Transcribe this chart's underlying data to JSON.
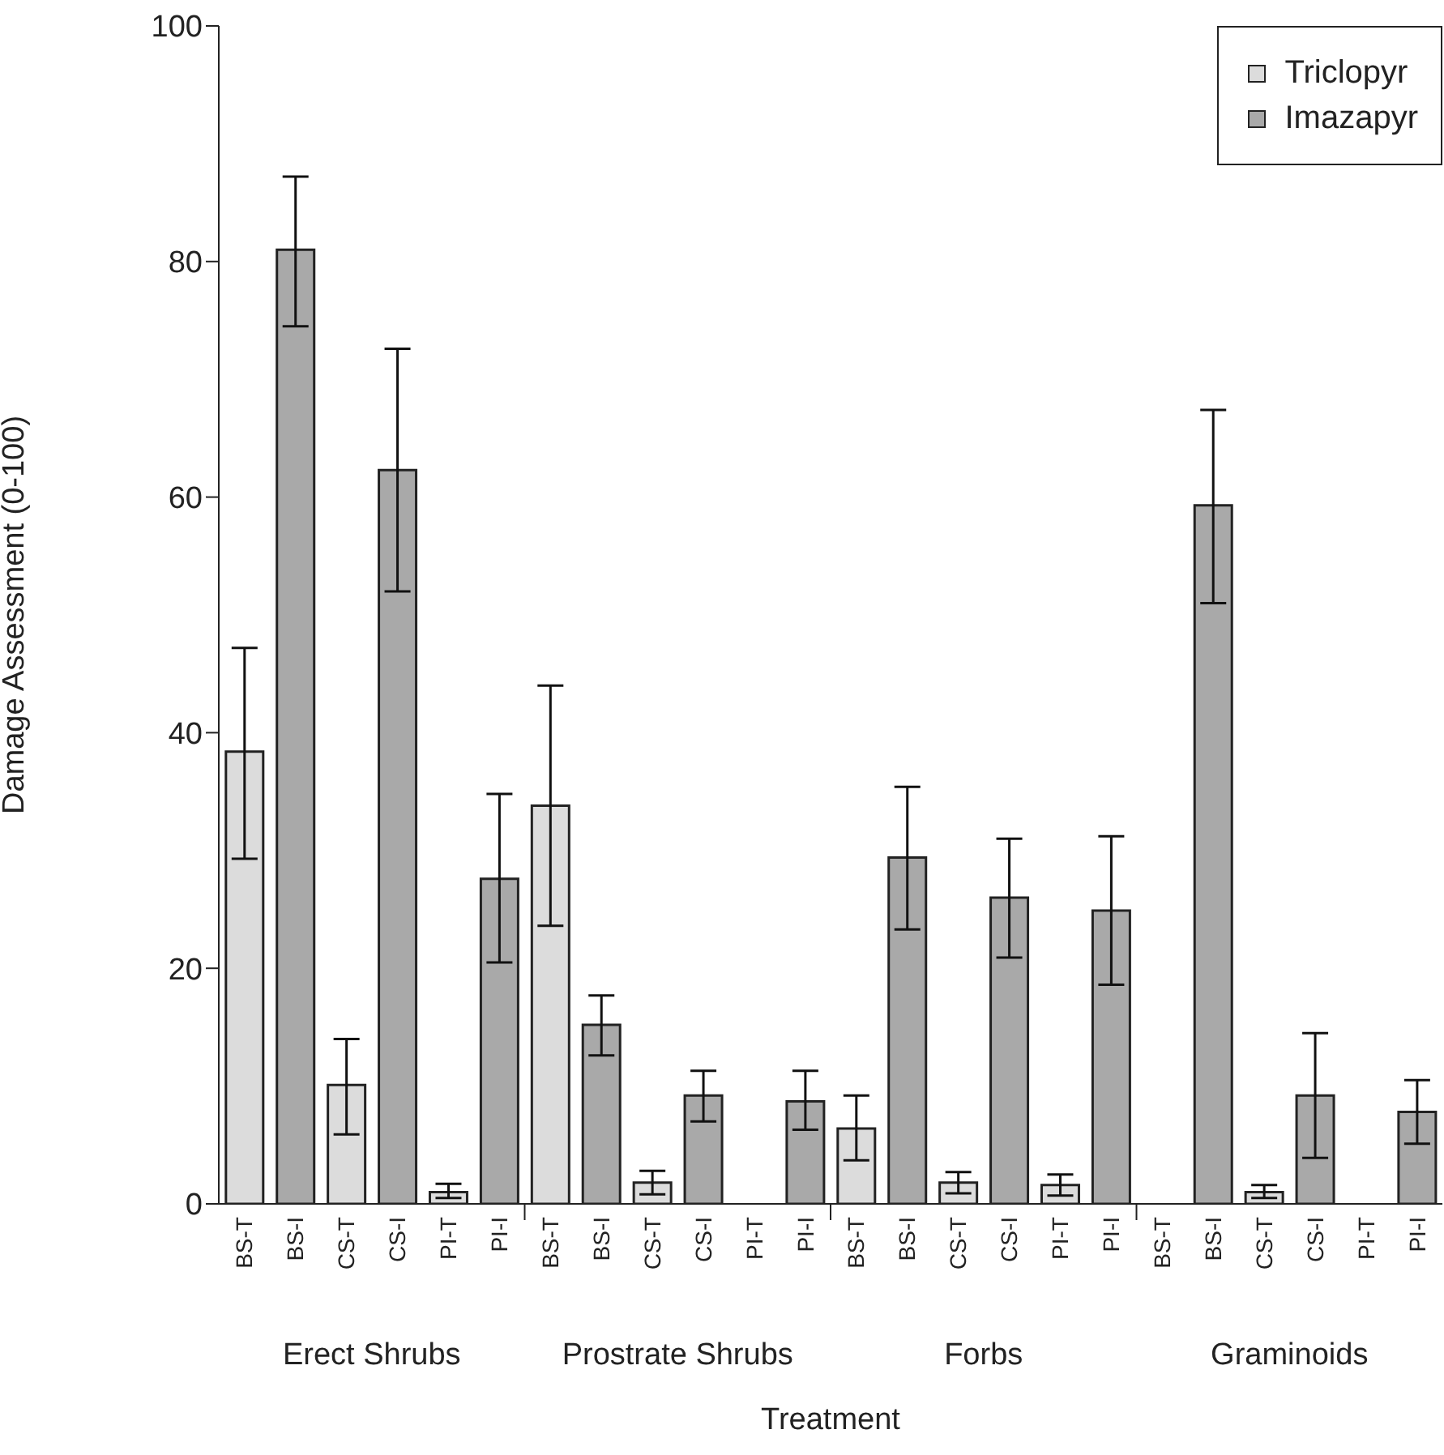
{
  "chart_data": {
    "type": "bar",
    "xlabel": "Treatment",
    "ylabel": "Damage Assessment (0-100)",
    "categories": [
      "BS-T",
      "BS-I",
      "CS-T",
      "CS-I",
      "PI-T",
      "PI-I",
      "BS-T",
      "BS-I",
      "CS-T",
      "CS-I",
      "PI-T",
      "PI-I",
      "BS-T",
      "BS-I",
      "CS-T",
      "CS-I",
      "PI-T",
      "PI-I",
      "BS-T",
      "BS-I",
      "CS-T",
      "CS-I",
      "PI-T",
      "PI-I"
    ],
    "series": [
      {
        "name": "Triclopyr",
        "color": "#dcdcdc",
        "values": [
          38.4,
          null,
          10.1,
          null,
          1,
          null,
          33.8,
          null,
          1.8,
          null,
          null,
          null,
          6.4,
          null,
          1.8,
          null,
          1.6,
          null,
          null,
          null,
          1,
          null,
          null,
          null
        ],
        "errors": [
          [
            29.3,
            47.2
          ],
          null,
          [
            5.9,
            14
          ],
          null,
          [
            0.5,
            1.7
          ],
          null,
          [
            23.6,
            44
          ],
          null,
          [
            0.8,
            2.8
          ],
          null,
          null,
          null,
          [
            3.7,
            9.2
          ],
          null,
          [
            0.9,
            2.7
          ],
          null,
          [
            0.7,
            2.5
          ],
          null,
          null,
          null,
          [
            0.5,
            1.6
          ],
          null,
          null,
          null
        ]
      },
      {
        "name": "Imazapyr",
        "color": "#a9a9a9",
        "values": [
          null,
          81,
          null,
          62.3,
          null,
          27.6,
          null,
          15.2,
          null,
          9.2,
          null,
          8.7,
          null,
          29.4,
          null,
          26,
          null,
          24.9,
          null,
          59.3,
          null,
          9.2,
          null,
          7.8
        ],
        "errors": [
          null,
          [
            74.5,
            87.2
          ],
          null,
          [
            52,
            72.6
          ],
          null,
          [
            20.5,
            34.8
          ],
          null,
          [
            12.6,
            17.7
          ],
          null,
          [
            7,
            11.3
          ],
          null,
          [
            6.3,
            11.3
          ],
          null,
          [
            23.3,
            35.4
          ],
          null,
          [
            20.9,
            31
          ],
          null,
          [
            18.6,
            31.2
          ],
          null,
          [
            51,
            67.4
          ],
          null,
          [
            3.9,
            14.5
          ],
          null,
          [
            5.1,
            10.5
          ]
        ]
      }
    ],
    "ylim": [
      0,
      100
    ],
    "yticks": [
      0,
      20,
      40,
      60,
      80,
      100
    ],
    "grid": false,
    "legend": "top right",
    "annotations": [
      "Erect Shrubs",
      "Prostrate Shrubs",
      "Forbs",
      "Graminoids"
    ]
  }
}
